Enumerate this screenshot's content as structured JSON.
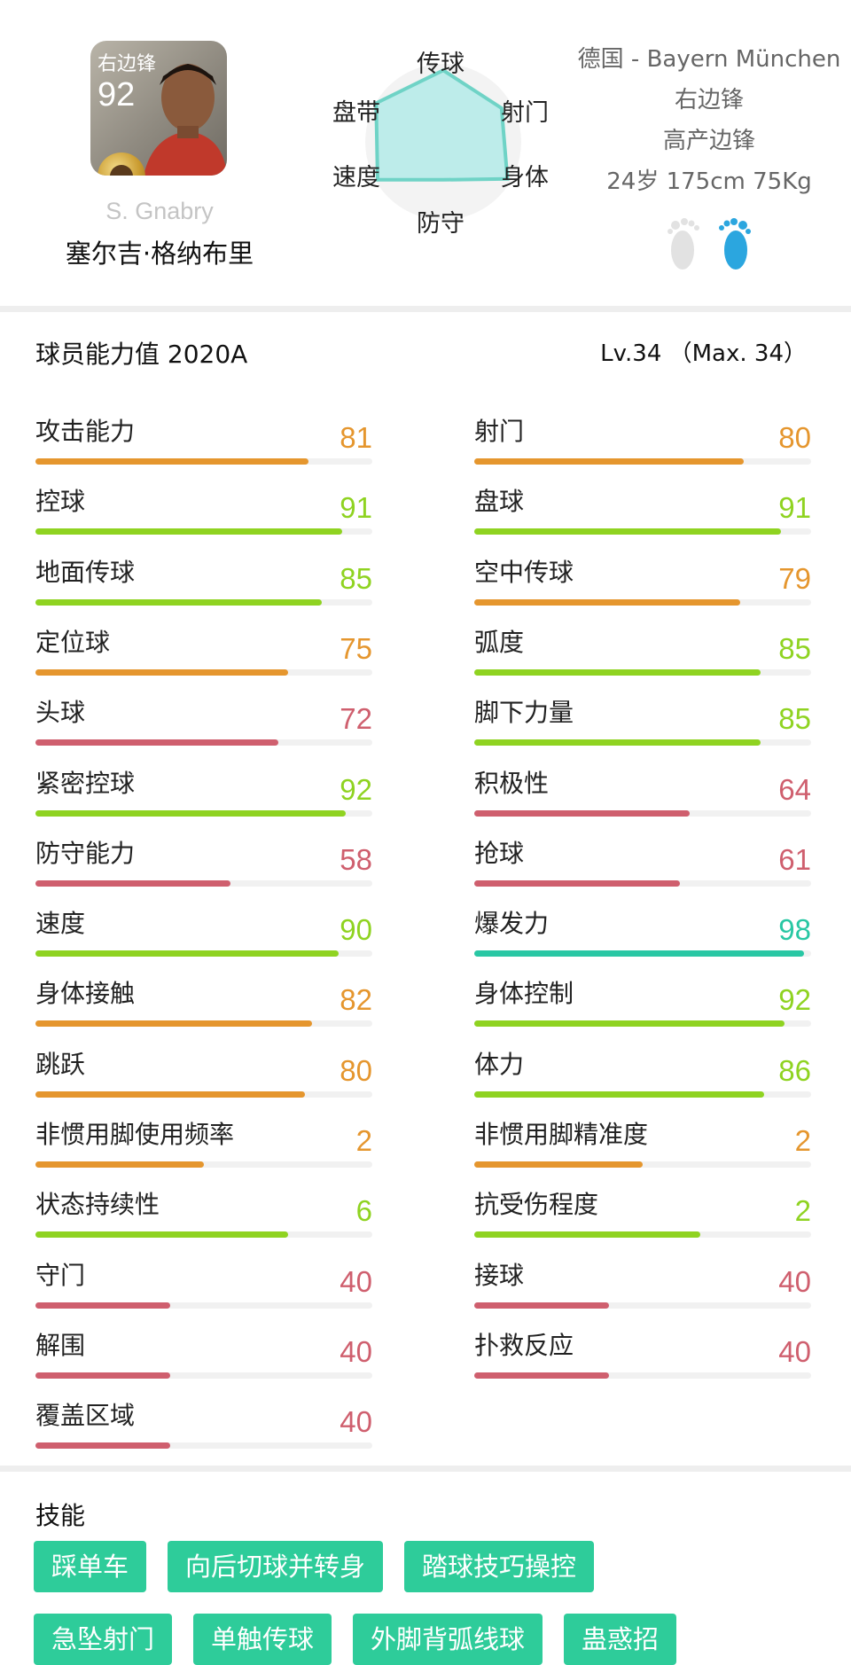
{
  "player": {
    "position": "右边锋",
    "rating": "92",
    "name_en": "S. Gnabry",
    "name_cn": "塞尔吉·格纳布里",
    "club": "德国 - Bayern München",
    "position_full": "右边锋",
    "style": "高产边锋",
    "body": "24岁 175cm 75Kg",
    "foot": "right"
  },
  "radar": {
    "labels": [
      "传球",
      "射门",
      "身体",
      "防守",
      "速度",
      "盘带"
    ],
    "values": [
      0.85,
      0.8,
      0.88,
      0.45,
      0.9,
      0.92
    ],
    "fill_color": "#bdecea",
    "line_color": "#6fd3c6"
  },
  "stats": {
    "title": "球员能力值 2020A",
    "level": "Lv.34 （Max. 34）",
    "max_value": 100,
    "colors": {
      "green": "#8fd321",
      "orange": "#e5962e",
      "red": "#cf5f6e",
      "teal": "#29c7a4"
    },
    "left": [
      {
        "label": "攻击能力",
        "value": 81,
        "color": "orange"
      },
      {
        "label": "控球",
        "value": 91,
        "color": "green"
      },
      {
        "label": "地面传球",
        "value": 85,
        "color": "green"
      },
      {
        "label": "定位球",
        "value": 75,
        "color": "orange"
      },
      {
        "label": "头球",
        "value": 72,
        "color": "red"
      },
      {
        "label": "紧密控球",
        "value": 92,
        "color": "green"
      },
      {
        "label": "防守能力",
        "value": 58,
        "color": "red"
      },
      {
        "label": "速度",
        "value": 90,
        "color": "green"
      },
      {
        "label": "身体接触",
        "value": 82,
        "color": "orange"
      },
      {
        "label": "跳跃",
        "value": 80,
        "color": "orange"
      },
      {
        "label": "非惯用脚使用频率",
        "value": 2,
        "color": "orange",
        "fill": 0.5
      },
      {
        "label": "状态持续性",
        "value": 6,
        "color": "green",
        "fill": 0.75
      },
      {
        "label": "守门",
        "value": 40,
        "color": "red"
      },
      {
        "label": "解围",
        "value": 40,
        "color": "red"
      },
      {
        "label": "覆盖区域",
        "value": 40,
        "color": "red"
      }
    ],
    "right": [
      {
        "label": "射门",
        "value": 80,
        "color": "orange"
      },
      {
        "label": "盘球",
        "value": 91,
        "color": "green"
      },
      {
        "label": "空中传球",
        "value": 79,
        "color": "orange"
      },
      {
        "label": "弧度",
        "value": 85,
        "color": "green"
      },
      {
        "label": "脚下力量",
        "value": 85,
        "color": "green"
      },
      {
        "label": "积极性",
        "value": 64,
        "color": "red"
      },
      {
        "label": "抢球",
        "value": 61,
        "color": "red"
      },
      {
        "label": "爆发力",
        "value": 98,
        "color": "teal"
      },
      {
        "label": "身体控制",
        "value": 92,
        "color": "green"
      },
      {
        "label": "体力",
        "value": 86,
        "color": "green"
      },
      {
        "label": "非惯用脚精准度",
        "value": 2,
        "color": "orange",
        "fill": 0.5
      },
      {
        "label": "抗受伤程度",
        "value": 2,
        "color": "green",
        "fill": 0.67
      },
      {
        "label": "接球",
        "value": 40,
        "color": "red"
      },
      {
        "label": "扑救反应",
        "value": 40,
        "color": "red"
      }
    ]
  },
  "skills": {
    "title": "技能",
    "rows": [
      [
        "踩单车",
        "向后切球并转身",
        "踏球技巧操控"
      ],
      [
        "急坠射门",
        "单触传球",
        "外脚背弧线球",
        "蛊惑招"
      ]
    ]
  }
}
